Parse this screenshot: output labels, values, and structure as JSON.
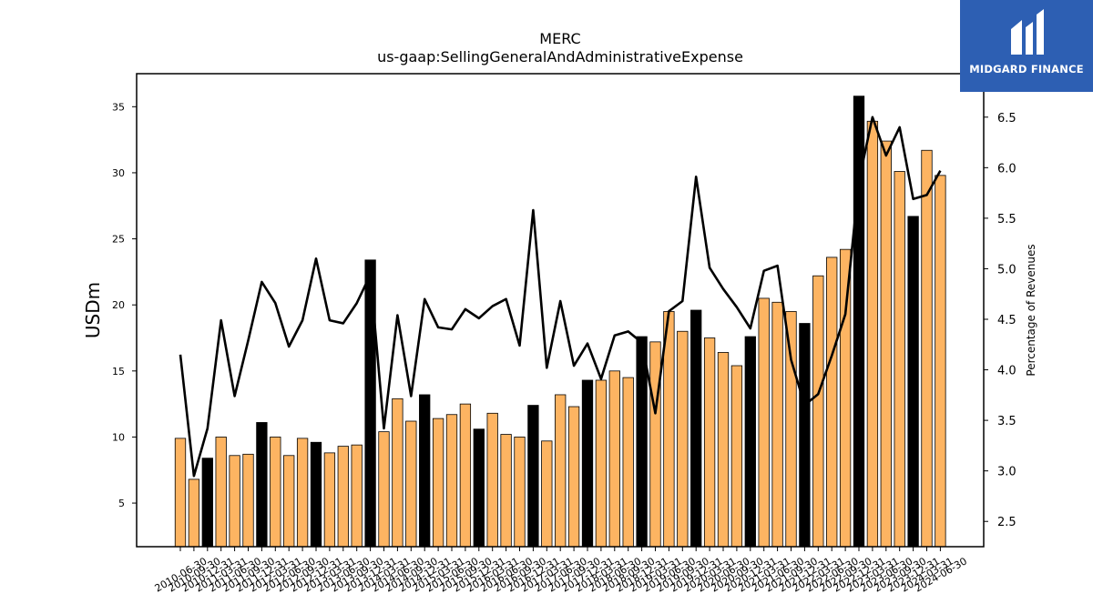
{
  "brand": {
    "name": "MIDGARD FINANCE",
    "color": "#2d5fb3"
  },
  "chart_data": {
    "type": "bar",
    "title": "MERC",
    "subtitle": "us-gaap:SellingGeneralAndAdministrativeExpense",
    "ylabel": "USDm",
    "y2label": "Percentage of Revenues",
    "ylim": [
      1.7,
      37.5
    ],
    "y2lim": [
      2.25,
      6.93
    ],
    "yticks": [
      5,
      10,
      15,
      20,
      25,
      30,
      35
    ],
    "y2ticks": [
      2.5,
      3.0,
      3.5,
      4.0,
      4.5,
      5.0,
      5.5,
      6.0,
      6.5
    ],
    "bar_color_quarter": "#fdb462",
    "bar_color_annual": "#000000",
    "line_color": "#000000",
    "grid": false,
    "categories": [
      "2010-06-30",
      "2010-09-30",
      "2010-12-31",
      "2011-03-31",
      "2011-06-30",
      "2011-09-30",
      "2011-12-31",
      "2012-03-31",
      "2012-06-30",
      "2012-09-30",
      "2012-12-31",
      "2013-03-31",
      "2013-06-30",
      "2013-09-30",
      "2013-12-31",
      "2014-03-31",
      "2014-06-30",
      "2014-09-30",
      "2014-12-31",
      "2015-03-31",
      "2015-06-30",
      "2015-09-30",
      "2015-12-31",
      "2016-03-31",
      "2016-06-30",
      "2016-09-30",
      "2016-12-31",
      "2017-03-31",
      "2017-06-30",
      "2017-09-30",
      "2017-12-31",
      "2018-03-31",
      "2018-06-30",
      "2018-09-30",
      "2018-12-31",
      "2019-03-31",
      "2019-06-30",
      "2019-09-30",
      "2019-12-31",
      "2020-03-31",
      "2020-06-30",
      "2020-09-30",
      "2020-12-31",
      "2021-03-31",
      "2021-06-30",
      "2021-09-30",
      "2021-12-31",
      "2022-03-31",
      "2022-06-30",
      "2022-09-30",
      "2022-12-31",
      "2023-03-31",
      "2023-06-30",
      "2023-09-30",
      "2023-12-31",
      "2024-03-31",
      "2024-06-30"
    ],
    "series": [
      {
        "type": "bar",
        "axis": "left",
        "values": [
          9.9,
          6.8,
          8.4,
          10.0,
          8.6,
          8.7,
          11.1,
          10.0,
          8.6,
          9.9,
          9.6,
          8.8,
          9.3,
          9.4,
          23.4,
          10.4,
          12.9,
          11.2,
          13.2,
          11.4,
          11.7,
          12.5,
          10.6,
          11.8,
          10.2,
          10.0,
          12.4,
          9.7,
          13.2,
          12.3,
          14.3,
          14.3,
          15.0,
          14.5,
          17.6,
          17.2,
          19.5,
          18.0,
          19.6,
          17.5,
          16.4,
          15.4,
          17.6,
          20.5,
          20.2,
          19.5,
          18.6,
          22.2,
          23.6,
          24.2,
          35.8,
          33.9,
          32.4,
          30.1,
          26.7,
          31.7,
          29.8
        ],
        "annual": [
          false,
          false,
          true,
          false,
          false,
          false,
          true,
          false,
          false,
          false,
          true,
          false,
          false,
          false,
          true,
          false,
          false,
          false,
          true,
          false,
          false,
          false,
          true,
          false,
          false,
          false,
          true,
          false,
          false,
          false,
          true,
          false,
          false,
          false,
          true,
          false,
          false,
          false,
          true,
          false,
          false,
          false,
          true,
          false,
          false,
          false,
          true,
          false,
          false,
          false,
          true,
          false,
          false,
          false,
          true,
          false,
          false
        ]
      },
      {
        "type": "line",
        "axis": "right",
        "values": [
          4.15,
          2.95,
          3.42,
          4.49,
          3.74,
          4.29,
          4.87,
          4.66,
          4.23,
          4.49,
          5.1,
          4.49,
          4.46,
          4.66,
          4.94,
          3.42,
          4.54,
          3.74,
          4.7,
          4.42,
          4.4,
          4.6,
          4.51,
          4.63,
          4.7,
          4.24,
          5.58,
          4.02,
          4.68,
          4.04,
          4.26,
          3.91,
          4.34,
          4.38,
          4.27,
          3.57,
          4.58,
          4.68,
          5.91,
          5.01,
          4.8,
          4.62,
          4.41,
          4.98,
          5.03,
          4.1,
          3.65,
          3.76,
          4.14,
          4.55,
          5.87,
          6.5,
          6.12,
          6.4,
          5.69,
          5.73,
          5.97
        ]
      }
    ]
  }
}
